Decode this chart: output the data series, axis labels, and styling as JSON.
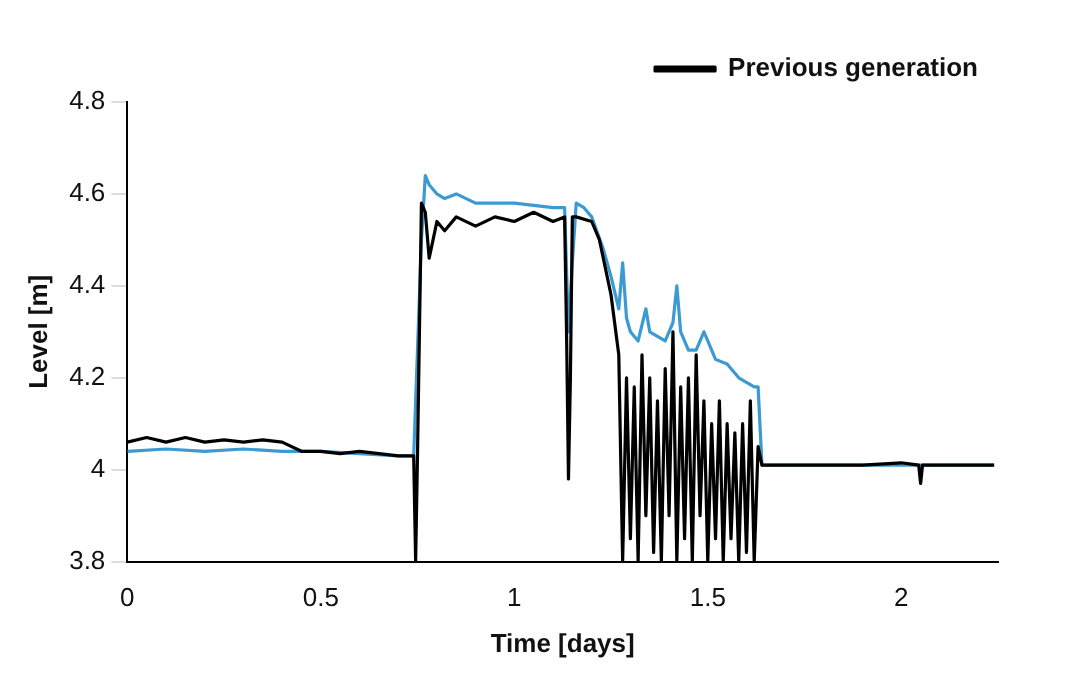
{
  "chart_data": {
    "type": "line",
    "xlabel": "Time [days]",
    "ylabel": "Level [m]",
    "xlim": [
      0,
      2.25
    ],
    "xticks": [
      0,
      0.5,
      1,
      1.5,
      2
    ],
    "ylim": [
      3.8,
      4.8
    ],
    "yticks": [
      4,
      4.2,
      4.4,
      4.6,
      4.8,
      {
        "value": 3.8,
        "label": "3.8"
      }
    ],
    "grid": false,
    "legend": "top right",
    "marker": "none",
    "line_style": "solid",
    "series": [
      {
        "name": "Previous generation",
        "color": "#000000",
        "x": [
          0,
          0.05,
          0.1,
          0.15,
          0.2,
          0.25,
          0.3,
          0.35,
          0.4,
          0.45,
          0.5,
          0.55,
          0.6,
          0.65,
          0.7,
          0.74,
          0.745,
          0.75,
          0.76,
          0.77,
          0.78,
          0.79,
          0.8,
          0.82,
          0.85,
          0.9,
          0.95,
          1,
          1.05,
          1.1,
          1.13,
          1.135,
          1.14,
          1.145,
          1.15,
          1.16,
          1.2,
          1.22,
          1.25,
          1.27,
          1.28,
          1.29,
          1.3,
          1.31,
          1.32,
          1.33,
          1.34,
          1.35,
          1.36,
          1.37,
          1.38,
          1.39,
          1.4,
          1.41,
          1.42,
          1.43,
          1.44,
          1.45,
          1.46,
          1.47,
          1.48,
          1.49,
          1.5,
          1.51,
          1.52,
          1.53,
          1.54,
          1.55,
          1.56,
          1.57,
          1.58,
          1.59,
          1.6,
          1.61,
          1.62,
          1.63,
          1.64,
          1.7,
          1.8,
          1.9,
          2,
          2.045,
          2.05,
          2.055,
          2.2,
          2.24
        ],
        "values": [
          4.06,
          4.07,
          4.06,
          4.07,
          4.06,
          4.065,
          4.06,
          4.065,
          4.06,
          4.04,
          4.04,
          4.035,
          4.04,
          4.035,
          4.03,
          4.03,
          3.8,
          4.04,
          4.58,
          4.56,
          4.46,
          4.5,
          4.54,
          4.52,
          4.55,
          4.53,
          4.55,
          4.54,
          4.56,
          4.54,
          4.55,
          4.3,
          3.98,
          4.2,
          4.55,
          4.55,
          4.54,
          4.5,
          4.38,
          4.25,
          3.8,
          4.2,
          3.85,
          4.18,
          3.8,
          4.25,
          3.9,
          4.2,
          3.82,
          4.15,
          3.8,
          4.22,
          3.9,
          4.3,
          3.8,
          4.18,
          3.85,
          4.2,
          3.8,
          4.25,
          3.9,
          4.15,
          3.8,
          4.1,
          3.85,
          4.15,
          3.8,
          4.1,
          3.85,
          4.08,
          3.8,
          4.1,
          3.82,
          4.15,
          3.8,
          4.05,
          4.01,
          4.01,
          4.01,
          4.01,
          4.015,
          4.01,
          3.97,
          4.01,
          4.01,
          4.01
        ]
      },
      {
        "color": "#3b9ad2",
        "x": [
          0,
          0.1,
          0.2,
          0.3,
          0.4,
          0.5,
          0.6,
          0.7,
          0.74,
          0.76,
          0.77,
          0.78,
          0.8,
          0.82,
          0.85,
          0.9,
          1,
          1.1,
          1.13,
          1.14,
          1.15,
          1.16,
          1.18,
          1.2,
          1.23,
          1.25,
          1.27,
          1.28,
          1.29,
          1.3,
          1.32,
          1.34,
          1.35,
          1.37,
          1.39,
          1.41,
          1.42,
          1.43,
          1.45,
          1.47,
          1.49,
          1.5,
          1.52,
          1.55,
          1.58,
          1.6,
          1.62,
          1.63,
          1.64,
          1.7,
          1.8,
          1.9,
          2,
          2.1,
          2.2,
          2.24
        ],
        "values": [
          4.04,
          4.045,
          4.04,
          4.045,
          4.04,
          4.04,
          4.035,
          4.03,
          4.03,
          4.5,
          4.64,
          4.62,
          4.6,
          4.59,
          4.6,
          4.58,
          4.58,
          4.57,
          4.57,
          4.3,
          4.45,
          4.58,
          4.57,
          4.55,
          4.48,
          4.42,
          4.35,
          4.45,
          4.33,
          4.3,
          4.28,
          4.35,
          4.3,
          4.29,
          4.28,
          4.32,
          4.4,
          4.3,
          4.26,
          4.26,
          4.3,
          4.28,
          4.24,
          4.23,
          4.2,
          4.19,
          4.18,
          4.18,
          4.01,
          4.01,
          4.01,
          4.01,
          4.01,
          4.01,
          4.01,
          4.01
        ]
      }
    ]
  }
}
